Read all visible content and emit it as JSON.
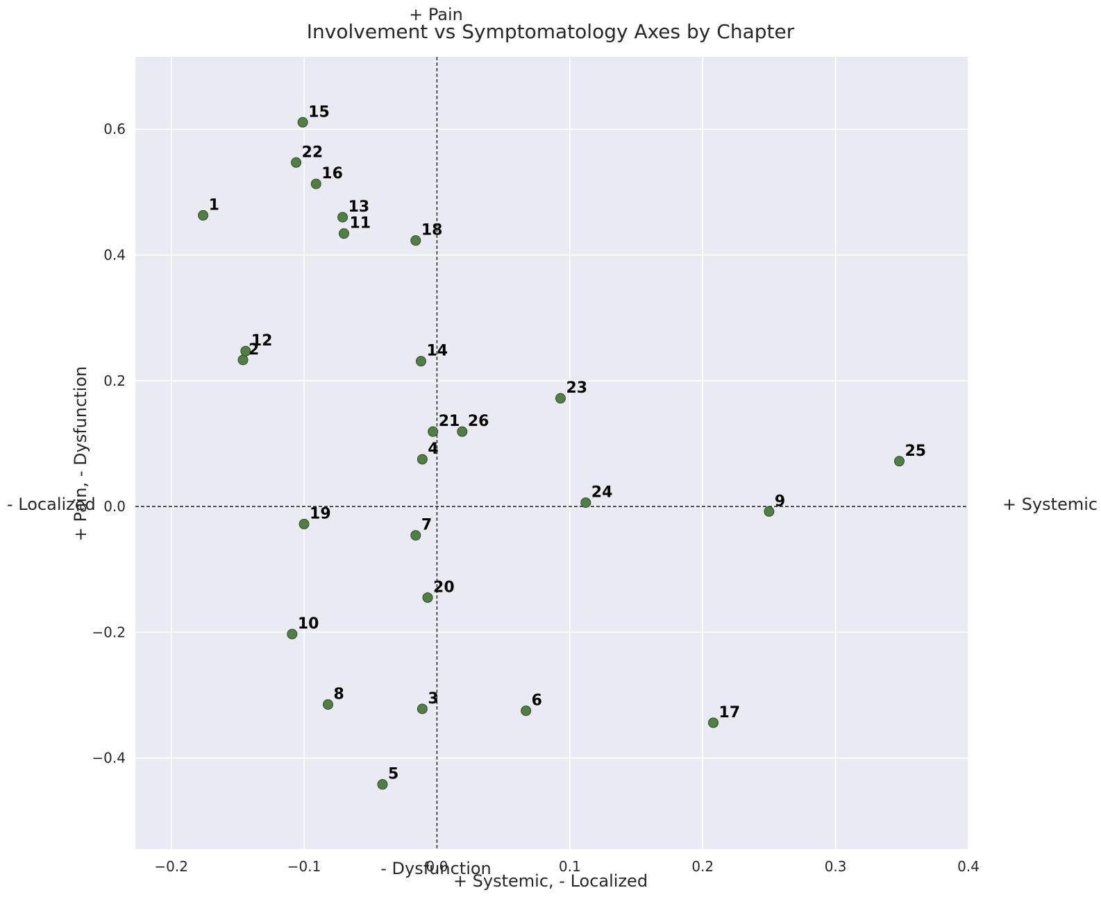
{
  "chart_data": {
    "type": "scatter",
    "title": "Involvement vs Symptomatology Axes by Chapter",
    "xlabel": "+ Systemic, - Localized",
    "ylabel": "+ Pain, - Dysfunction",
    "xlim": [
      -0.227,
      0.4
    ],
    "ylim": [
      -0.545,
      0.715
    ],
    "xticks": [
      -0.2,
      -0.1,
      0.0,
      0.1,
      0.2,
      0.3,
      0.4
    ],
    "xtick_labels": [
      "−0.2",
      "−0.1",
      "0.0",
      "0.1",
      "0.2",
      "0.3",
      "0.4"
    ],
    "yticks": [
      -0.4,
      -0.2,
      0.0,
      0.2,
      0.4,
      0.6
    ],
    "ytick_labels": [
      "−0.4",
      "−0.2",
      "0.0",
      "0.2",
      "0.4",
      "0.6"
    ],
    "grid": true,
    "reference_lines": {
      "x": 0,
      "y": 0,
      "style": "dashed"
    },
    "direction_labels": {
      "right": "+ Systemic",
      "left": "- Localized",
      "top": "+ Pain",
      "bottom": "- Dysfunction"
    },
    "colors": {
      "background": "#eaeaf2",
      "grid": "#ffffff",
      "marker": "#4f7f43",
      "marker_edge": "#2f4a2a"
    },
    "points": [
      {
        "label": "1",
        "x": -0.176,
        "y": 0.463
      },
      {
        "label": "2",
        "x": -0.146,
        "y": 0.233
      },
      {
        "label": "3",
        "x": -0.011,
        "y": -0.322
      },
      {
        "label": "4",
        "x": -0.011,
        "y": 0.075
      },
      {
        "label": "5",
        "x": -0.041,
        "y": -0.442
      },
      {
        "label": "6",
        "x": 0.067,
        "y": -0.325
      },
      {
        "label": "7",
        "x": -0.016,
        "y": -0.046
      },
      {
        "label": "8",
        "x": -0.082,
        "y": -0.315
      },
      {
        "label": "9",
        "x": 0.25,
        "y": -0.008
      },
      {
        "label": "10",
        "x": -0.109,
        "y": -0.203
      },
      {
        "label": "11",
        "x": -0.07,
        "y": 0.434
      },
      {
        "label": "12",
        "x": -0.144,
        "y": 0.247
      },
      {
        "label": "13",
        "x": -0.071,
        "y": 0.46
      },
      {
        "label": "14",
        "x": -0.012,
        "y": 0.231
      },
      {
        "label": "15",
        "x": -0.101,
        "y": 0.611
      },
      {
        "label": "16",
        "x": -0.091,
        "y": 0.513
      },
      {
        "label": "17",
        "x": 0.208,
        "y": -0.344
      },
      {
        "label": "18",
        "x": -0.016,
        "y": 0.423
      },
      {
        "label": "19",
        "x": -0.1,
        "y": -0.028
      },
      {
        "label": "20",
        "x": -0.007,
        "y": -0.145
      },
      {
        "label": "21",
        "x": -0.003,
        "y": 0.119
      },
      {
        "label": "22",
        "x": -0.106,
        "y": 0.547
      },
      {
        "label": "23",
        "x": 0.093,
        "y": 0.172
      },
      {
        "label": "24",
        "x": 0.112,
        "y": 0.006
      },
      {
        "label": "25",
        "x": 0.348,
        "y": 0.072
      },
      {
        "label": "26",
        "x": 0.019,
        "y": 0.119
      }
    ]
  }
}
